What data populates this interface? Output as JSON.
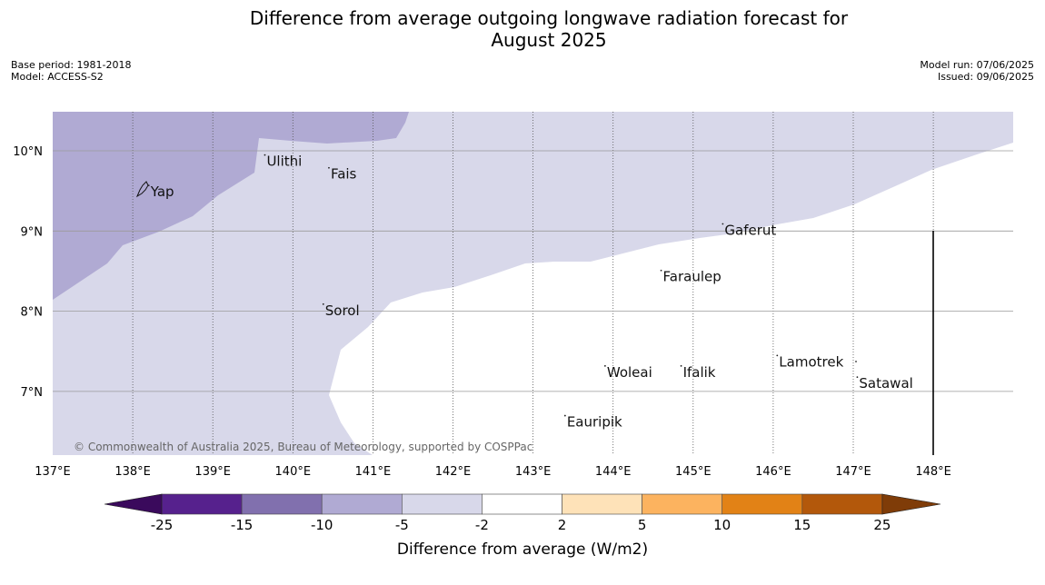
{
  "title": {
    "line1": "Difference from average outgoing longwave radiation forecast for",
    "line2": "August 2025"
  },
  "meta_left": {
    "base_period": "Base period: 1981-2018",
    "model": "Model: ACCESS-S2"
  },
  "meta_right": {
    "model_run": "Model run: 07/06/2025",
    "issued": "Issued: 09/06/2025"
  },
  "map": {
    "lon_range": [
      137,
      149
    ],
    "lat_range": [
      6.2,
      10.5
    ],
    "lon_ticks": [
      {
        "value": 137,
        "label": "137°E"
      },
      {
        "value": 138,
        "label": "138°E"
      },
      {
        "value": 139,
        "label": "139°E"
      },
      {
        "value": 140,
        "label": "140°E"
      },
      {
        "value": 141,
        "label": "141°E"
      },
      {
        "value": 142,
        "label": "142°E"
      },
      {
        "value": 143,
        "label": "143°E"
      },
      {
        "value": 144,
        "label": "144°E"
      },
      {
        "value": 145,
        "label": "145°E"
      },
      {
        "value": 146,
        "label": "146°E"
      },
      {
        "value": 147,
        "label": "147°E"
      },
      {
        "value": 148,
        "label": "148°E"
      }
    ],
    "lat_ticks": [
      {
        "value": 10,
        "label": "10°N"
      },
      {
        "value": 9,
        "label": "9°N"
      },
      {
        "value": 8,
        "label": "8°N"
      },
      {
        "value": 7,
        "label": "7°N"
      }
    ],
    "places": [
      {
        "name": "Yap",
        "lon": 138.2,
        "lat": 9.5
      },
      {
        "name": "Ulithi",
        "lon": 139.65,
        "lat": 9.88
      },
      {
        "name": "Fais",
        "lon": 140.45,
        "lat": 9.72
      },
      {
        "name": "Sorol",
        "lon": 140.38,
        "lat": 8.02
      },
      {
        "name": "Gaferut",
        "lon": 145.37,
        "lat": 9.02
      },
      {
        "name": "Faraulep",
        "lon": 144.6,
        "lat": 8.44
      },
      {
        "name": "Woleai",
        "lon": 143.9,
        "lat": 7.25
      },
      {
        "name": "Ifalik",
        "lon": 144.85,
        "lat": 7.25
      },
      {
        "name": "Lamotrek",
        "lon": 146.05,
        "lat": 7.38
      },
      {
        "name": "Satawal",
        "lon": 147.05,
        "lat": 7.11
      },
      {
        "name": "Eauripik",
        "lon": 143.4,
        "lat": 6.63
      }
    ],
    "regions": [
      {
        "category": "-10 to -5",
        "color": "#b0aad3"
      },
      {
        "category": "-5 to -2",
        "color": "#d8d8ea"
      },
      {
        "category": "-2 to 2",
        "color": "#ffffff"
      }
    ],
    "credit": "© Commonwealth of Australia 2025, Bureau of Meteorology, supported by COSPPac"
  },
  "colorbar": {
    "label": "Difference from average (W/m2)",
    "ticks": [
      "-25",
      "-15",
      "-10",
      "-5",
      "-2",
      "2",
      "5",
      "10",
      "15",
      "25"
    ],
    "colors": [
      "#56218d",
      "#8170ae",
      "#b0aad3",
      "#d8d8ea",
      "#ffffff",
      "#fee2b8",
      "#fcb35f",
      "#e28216",
      "#b3580b"
    ],
    "low_extend_color": "#3a0a5c",
    "high_extend_color": "#7f3c08"
  }
}
